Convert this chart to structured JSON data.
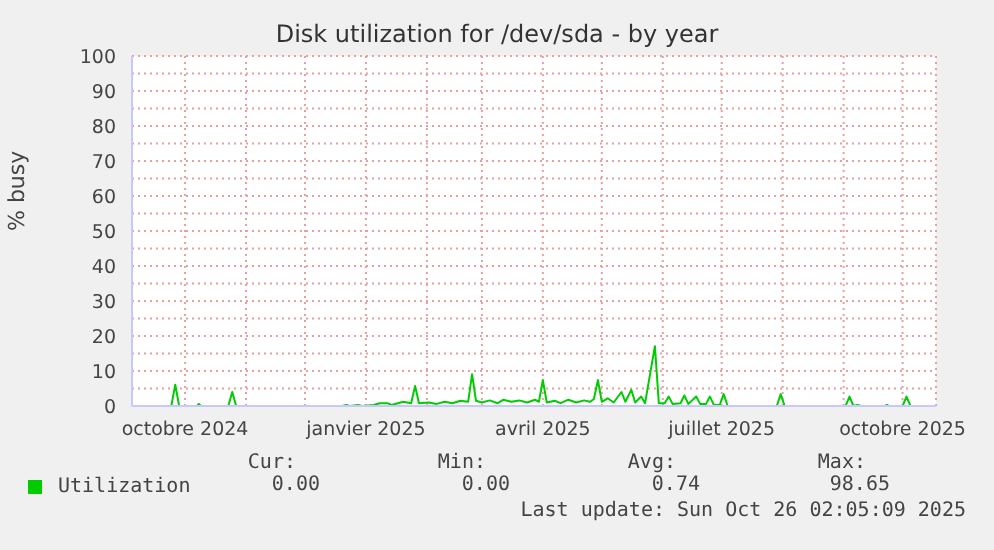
{
  "chart_data": {
    "type": "line",
    "title": "Disk utilization for /dev/sda - by year",
    "ylabel": "% busy",
    "xlim": [
      "2024-09-04",
      "2025-10-18"
    ],
    "xticks": [
      {
        "value": "2024-10-01",
        "label": "octobre 2024"
      },
      {
        "value": "2024-11-01",
        "label": null
      },
      {
        "value": "2024-12-01",
        "label": null
      },
      {
        "value": "2025-01-01",
        "label": "janvier 2025"
      },
      {
        "value": "2025-02-01",
        "label": null
      },
      {
        "value": "2025-03-01",
        "label": null
      },
      {
        "value": "2025-04-01",
        "label": "avril 2025"
      },
      {
        "value": "2025-05-01",
        "label": null
      },
      {
        "value": "2025-06-01",
        "label": null
      },
      {
        "value": "2025-07-01",
        "label": "juillet 2025"
      },
      {
        "value": "2025-08-01",
        "label": null
      },
      {
        "value": "2025-09-01",
        "label": null
      },
      {
        "value": "2025-10-01",
        "label": "octobre 2025"
      }
    ],
    "ylim": [
      0,
      100
    ],
    "yticks": [
      0,
      {
        "value": 5,
        "label": null
      },
      10,
      {
        "value": 15,
        "label": null
      },
      20,
      {
        "value": 25,
        "label": null
      },
      30,
      {
        "value": 35,
        "label": null
      },
      40,
      {
        "value": 45,
        "label": null
      },
      50,
      {
        "value": 55,
        "label": null
      },
      60,
      {
        "value": 65,
        "label": null
      },
      70,
      {
        "value": 75,
        "label": null
      },
      80,
      {
        "value": 85,
        "label": null
      },
      90,
      {
        "value": 95,
        "label": null
      },
      100
    ],
    "grid": true,
    "legend": "bottom",
    "marker": "none",
    "line_style": "solid",
    "x": [
      "2024-09-04",
      "2024-09-24",
      "2024-09-26",
      "2024-09-28",
      "2024-10-07",
      "2024-10-08",
      "2024-10-09",
      "2024-10-23",
      "2024-10-25",
      "2024-10-27",
      "2024-12-20",
      "2024-12-22",
      "2024-12-24",
      "2024-12-28",
      "2024-12-30",
      "2025-01-05",
      "2025-01-08",
      "2025-01-12",
      "2025-01-14",
      "2025-01-20",
      "2025-01-24",
      "2025-01-26",
      "2025-01-28",
      "2025-02-02",
      "2025-02-06",
      "2025-02-10",
      "2025-02-14",
      "2025-02-18",
      "2025-02-22",
      "2025-02-24",
      "2025-02-26",
      "2025-03-01",
      "2025-03-05",
      "2025-03-09",
      "2025-03-12",
      "2025-03-16",
      "2025-03-20",
      "2025-03-24",
      "2025-03-28",
      "2025-03-30",
      "2025-04-01",
      "2025-04-03",
      "2025-04-07",
      "2025-04-10",
      "2025-04-14",
      "2025-04-18",
      "2025-04-22",
      "2025-04-25",
      "2025-04-27",
      "2025-04-29",
      "2025-05-01",
      "2025-05-04",
      "2025-05-07",
      "2025-05-11",
      "2025-05-13",
      "2025-05-16",
      "2025-05-18",
      "2025-05-21",
      "2025-05-23",
      "2025-05-28",
      "2025-05-30",
      "2025-06-02",
      "2025-06-04",
      "2025-06-06",
      "2025-06-10",
      "2025-06-12",
      "2025-06-14",
      "2025-06-18",
      "2025-06-20",
      "2025-06-23",
      "2025-06-25",
      "2025-06-27",
      "2025-06-30",
      "2025-07-02",
      "2025-07-04",
      "2025-07-29",
      "2025-07-31",
      "2025-08-02",
      "2025-09-02",
      "2025-09-04",
      "2025-09-06",
      "2025-09-08",
      "2025-09-10",
      "2025-09-22",
      "2025-09-23",
      "2025-09-24",
      "2025-10-01",
      "2025-10-03",
      "2025-10-05",
      "2025-10-18"
    ],
    "series": [
      {
        "name": "Utilization",
        "color": "#00cc00",
        "values": [
          0,
          0,
          6.1,
          0,
          0,
          0.6,
          0,
          0,
          4.0,
          0,
          0,
          0.3,
          0,
          0.3,
          0,
          0.3,
          0.8,
          0.8,
          0.3,
          1.2,
          0.8,
          5.7,
          0.8,
          1.0,
          0.6,
          1.2,
          0.8,
          1.5,
          1.2,
          9.1,
          1.5,
          1.0,
          1.6,
          0.8,
          1.8,
          1.2,
          1.6,
          1.0,
          1.8,
          1.2,
          7.4,
          1.0,
          1.5,
          0.8,
          1.8,
          1.0,
          1.6,
          1.2,
          2.0,
          7.4,
          1.2,
          2.2,
          1.0,
          4.0,
          1.2,
          4.6,
          1.0,
          2.7,
          0.8,
          17.1,
          0.8,
          0.8,
          2.7,
          0.6,
          0.8,
          3.0,
          0.6,
          2.7,
          0.6,
          0.6,
          2.7,
          0.3,
          0.3,
          3.4,
          0,
          0,
          3.4,
          0,
          0,
          2.7,
          0,
          0.3,
          0,
          0,
          0.3,
          0,
          0,
          2.7,
          0,
          0
        ]
      }
    ],
    "annotations": [
      "Cur:",
      "0.00",
      "Min:",
      "0.00",
      "Avg:",
      "0.74",
      "Max:",
      "98.65",
      "Last update: Sun Oct 26 02:05:09 2025"
    ]
  }
}
